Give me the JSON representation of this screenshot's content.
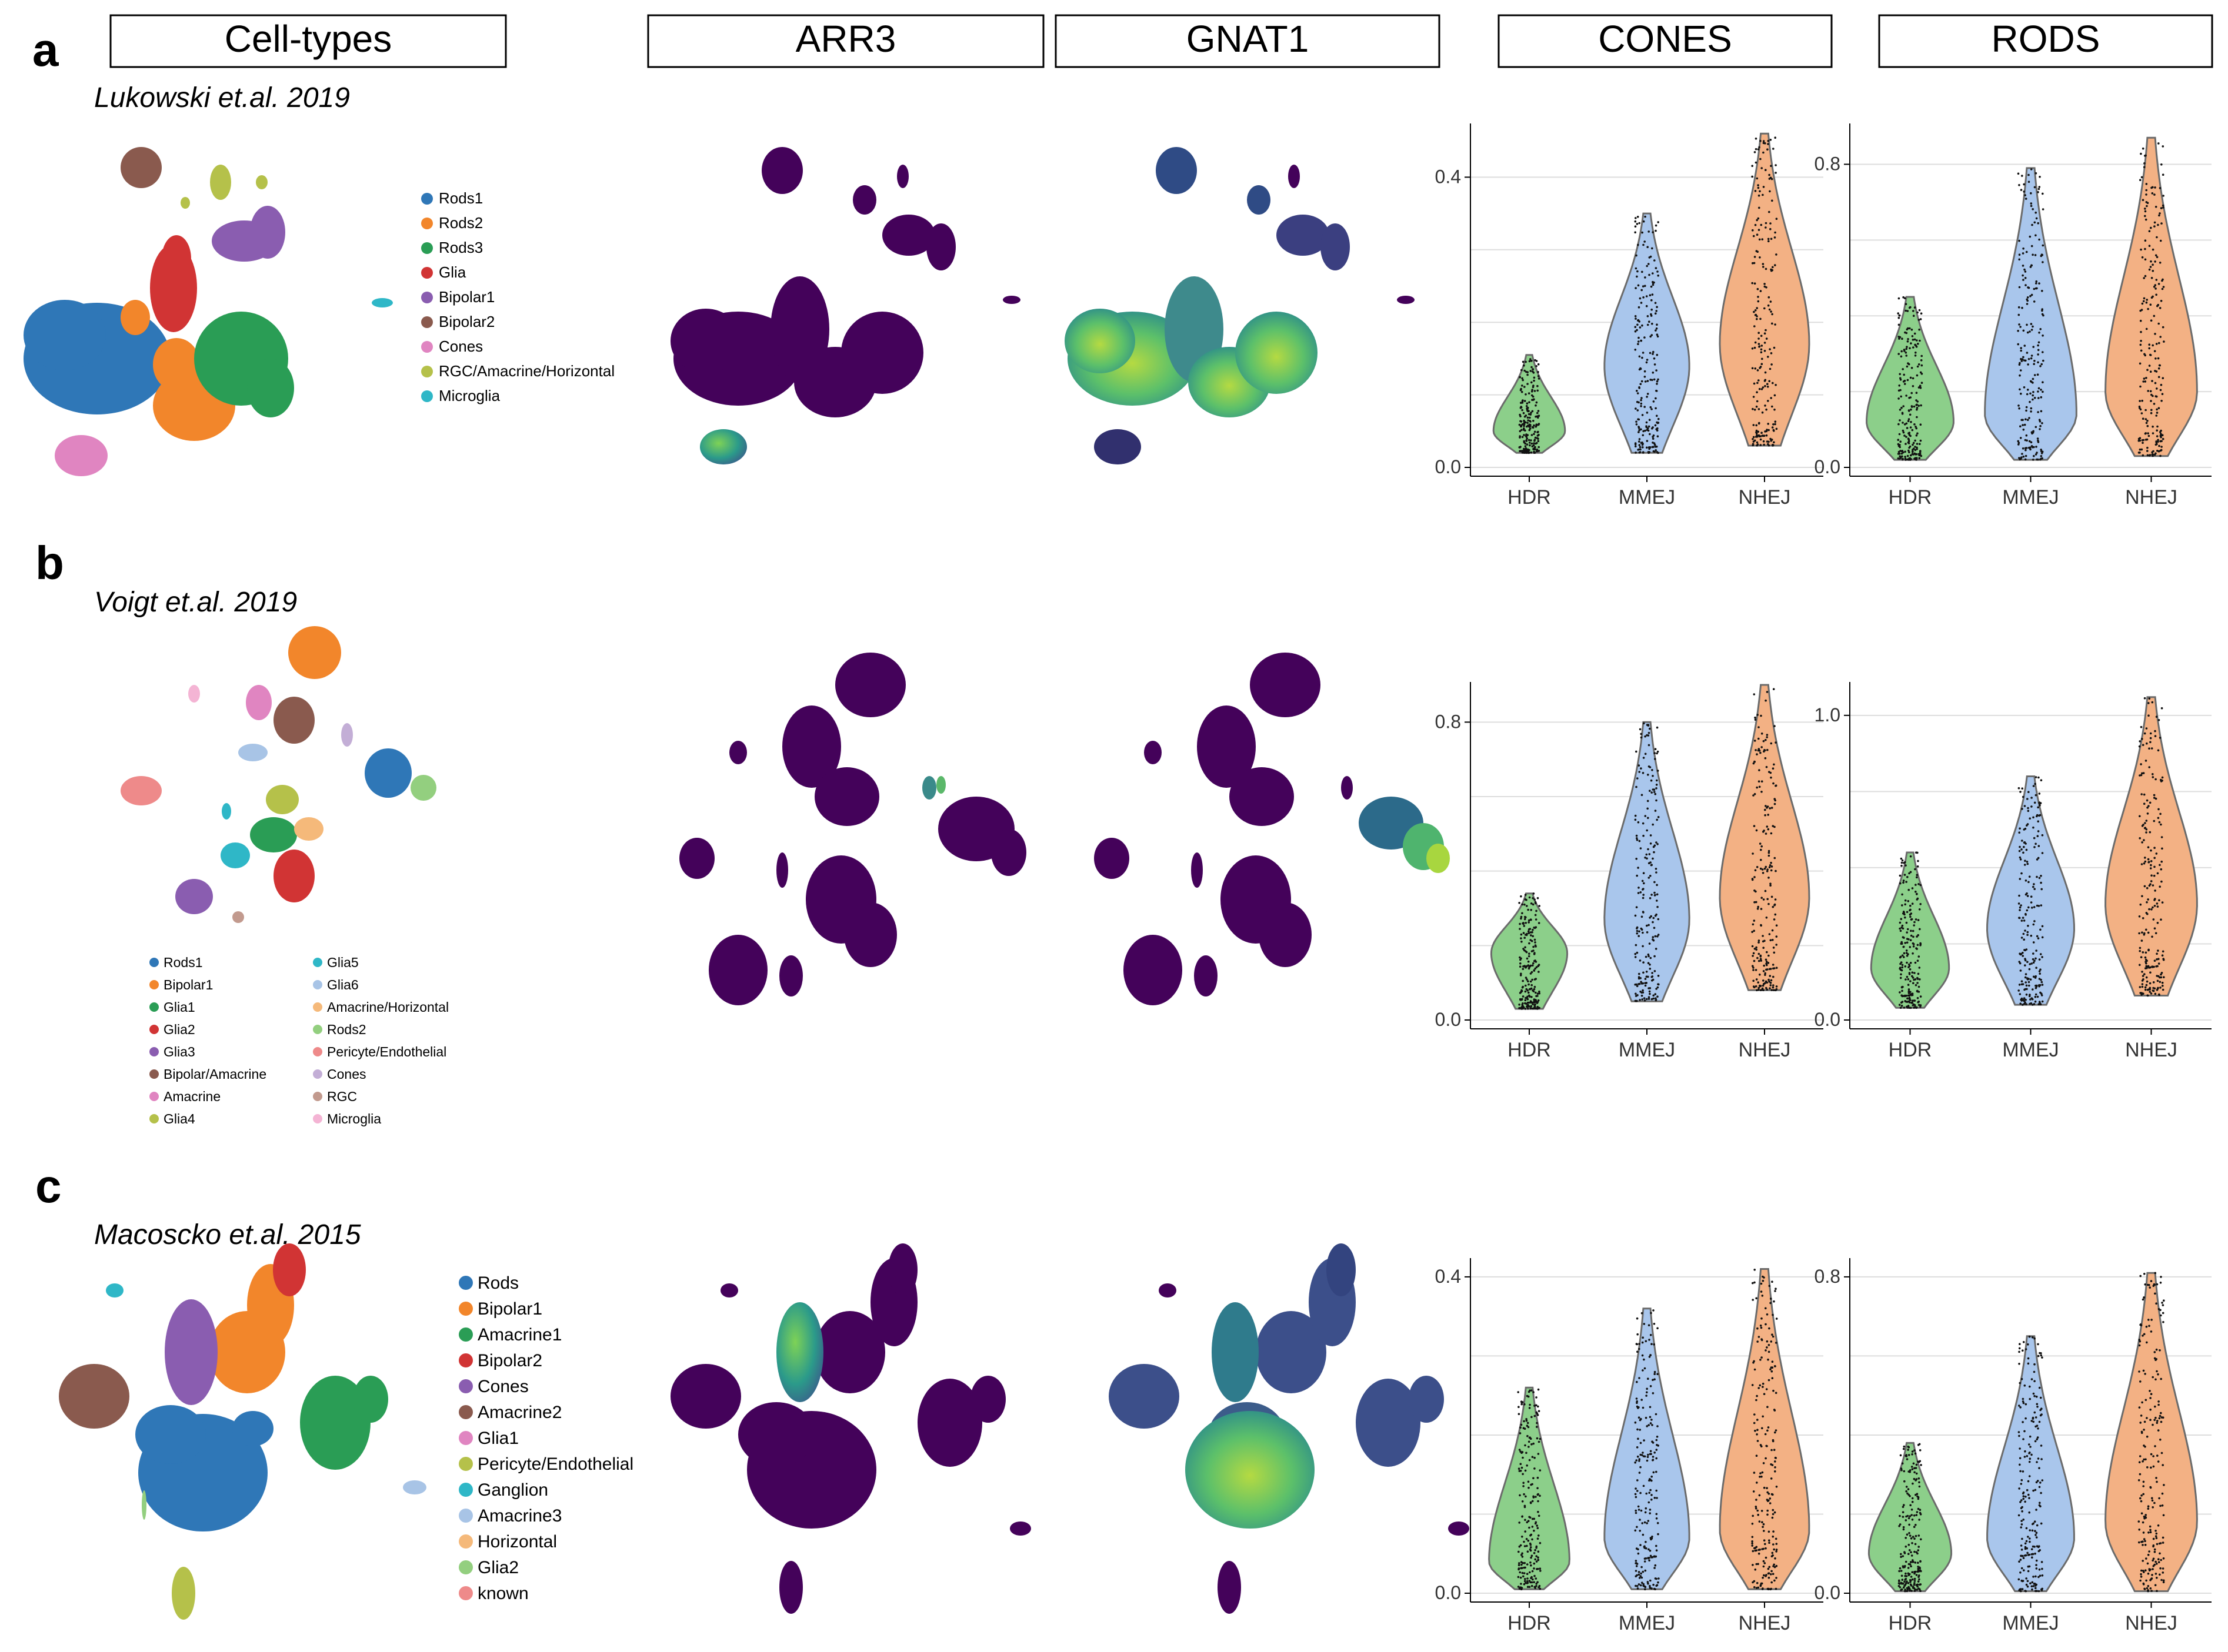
{
  "panel_labels": [
    "a",
    "b",
    "c"
  ],
  "column_headers": [
    "Cell-types",
    "ARR3",
    "GNAT1",
    "CONES",
    "RODS"
  ],
  "rows": [
    {
      "study": "Lukowski et.al. 2019",
      "legend": [
        {
          "label": "Rods1",
          "color": "#2f77b7"
        },
        {
          "label": "Rods2",
          "color": "#f2862b"
        },
        {
          "label": "Rods3",
          "color": "#2a9d55"
        },
        {
          "label": "Glia",
          "color": "#d13434"
        },
        {
          "label": "Bipolar1",
          "color": "#8a5db0"
        },
        {
          "label": "Bipolar2",
          "color": "#8a5a4e"
        },
        {
          "label": "Cones",
          "color": "#e085c1"
        },
        {
          "label": "RGC/Amacrine/Horizontal",
          "color": "#b5c14a"
        },
        {
          "label": "Microglia",
          "color": "#2fb7c7"
        }
      ]
    },
    {
      "study": "Voigt et.al. 2019",
      "legend": [
        {
          "label": "Rods1",
          "color": "#2f77b7"
        },
        {
          "label": "Bipolar1",
          "color": "#f2862b"
        },
        {
          "label": "Glia1",
          "color": "#2a9d55"
        },
        {
          "label": "Glia2",
          "color": "#d13434"
        },
        {
          "label": "Glia3",
          "color": "#8a5db0"
        },
        {
          "label": "Bipolar/Amacrine",
          "color": "#8a5a4e"
        },
        {
          "label": "Amacrine",
          "color": "#e085c1"
        },
        {
          "label": "Glia4",
          "color": "#b5c14a"
        },
        {
          "label": "Glia5",
          "color": "#2fb7c7"
        },
        {
          "label": "Glia6",
          "color": "#a8c4e6"
        },
        {
          "label": "Amacrine/Horizontal",
          "color": "#f5b97a"
        },
        {
          "label": "Rods2",
          "color": "#93cf7f"
        },
        {
          "label": "Pericyte/Endothelial",
          "color": "#ee8a8a"
        },
        {
          "label": "Cones",
          "color": "#c3aed6"
        },
        {
          "label": "RGC",
          "color": "#c29a8e"
        },
        {
          "label": "Microglia",
          "color": "#f4b4d4"
        }
      ]
    },
    {
      "study": "Macoscko et.al. 2015",
      "legend": [
        {
          "label": "Rods",
          "color": "#2f77b7"
        },
        {
          "label": "Bipolar1",
          "color": "#f2862b"
        },
        {
          "label": "Amacrine1",
          "color": "#2a9d55"
        },
        {
          "label": "Bipolar2",
          "color": "#d13434"
        },
        {
          "label": "Cones",
          "color": "#8a5db0"
        },
        {
          "label": "Amacrine2",
          "color": "#8a5a4e"
        },
        {
          "label": "Glia1",
          "color": "#e085c1"
        },
        {
          "label": "Pericyte/Endothelial",
          "color": "#b5c14a"
        },
        {
          "label": "Ganglion",
          "color": "#2fb7c7"
        },
        {
          "label": "Amacrine3",
          "color": "#a8c4e6"
        },
        {
          "label": "Horizontal",
          "color": "#f5b97a"
        },
        {
          "label": "Glia2",
          "color": "#93cf7f"
        },
        {
          "label": "known",
          "color": "#ee8a8a"
        }
      ]
    }
  ],
  "colors": {
    "HDR": "#8ccf8a",
    "MMEJ": "#a9c6ec",
    "NHEJ": "#f3b184",
    "violin_outline": "#6b6b6b",
    "jitter": "#111111",
    "grid": "#dddddd",
    "viridis_low": "#44025a",
    "viridis_high": "#a8d63f"
  },
  "chart_data": [
    {
      "type": "violin",
      "row": 0,
      "column": "CONES",
      "categories": [
        "HDR",
        "MMEJ",
        "NHEJ"
      ],
      "ylim": [
        0,
        0.47
      ],
      "yticks": [
        0.0,
        0.4
      ],
      "ytick_labels": [
        "0.0",
        "0.4"
      ],
      "gridlines": [
        0,
        0.1,
        0.2,
        0.3,
        0.4
      ],
      "violins": [
        {
          "min": 0.02,
          "max": 0.155,
          "mode": 0.05,
          "width": 0.8
        },
        {
          "min": 0.02,
          "max": 0.35,
          "mode": 0.14,
          "width": 0.95
        },
        {
          "min": 0.03,
          "max": 0.46,
          "mode": 0.17,
          "width": 1.0
        }
      ]
    },
    {
      "type": "violin",
      "row": 0,
      "column": "RODS",
      "categories": [
        "HDR",
        "MMEJ",
        "NHEJ"
      ],
      "ylim": [
        0,
        0.9
      ],
      "yticks": [
        0.0,
        0.8
      ],
      "ytick_labels": [
        "0.0",
        "0.8"
      ],
      "gridlines": [
        0,
        0.2,
        0.4,
        0.6,
        0.8
      ],
      "violins": [
        {
          "min": 0.02,
          "max": 0.45,
          "mode": 0.12,
          "width": 0.95
        },
        {
          "min": 0.02,
          "max": 0.79,
          "mode": 0.14,
          "width": 1.0
        },
        {
          "min": 0.03,
          "max": 0.87,
          "mode": 0.2,
          "width": 1.0
        }
      ]
    },
    {
      "type": "violin",
      "row": 1,
      "column": "CONES",
      "categories": [
        "HDR",
        "MMEJ",
        "NHEJ"
      ],
      "ylim": [
        0,
        0.9
      ],
      "yticks": [
        0.0,
        0.8
      ],
      "ytick_labels": [
        "0.0",
        "0.8"
      ],
      "gridlines": [
        0,
        0.2,
        0.4,
        0.6,
        0.8
      ],
      "violins": [
        {
          "min": 0.03,
          "max": 0.34,
          "mode": 0.18,
          "width": 0.85
        },
        {
          "min": 0.05,
          "max": 0.8,
          "mode": 0.27,
          "width": 0.95
        },
        {
          "min": 0.08,
          "max": 0.9,
          "mode": 0.33,
          "width": 1.0
        }
      ]
    },
    {
      "type": "violin",
      "row": 1,
      "column": "RODS",
      "categories": [
        "HDR",
        "MMEJ",
        "NHEJ"
      ],
      "ylim": [
        0,
        1.1
      ],
      "yticks": [
        0.0,
        1.0
      ],
      "ytick_labels": [
        "0.0",
        "1.0"
      ],
      "gridlines": [
        0,
        0.25,
        0.5,
        0.75,
        1.0
      ],
      "violins": [
        {
          "min": 0.04,
          "max": 0.55,
          "mode": 0.17,
          "width": 0.85
        },
        {
          "min": 0.05,
          "max": 0.8,
          "mode": 0.3,
          "width": 0.95
        },
        {
          "min": 0.08,
          "max": 1.06,
          "mode": 0.38,
          "width": 1.0
        }
      ]
    },
    {
      "type": "violin",
      "row": 2,
      "column": "CONES",
      "categories": [
        "HDR",
        "MMEJ",
        "NHEJ"
      ],
      "ylim": [
        0,
        0.42
      ],
      "yticks": [
        0.0,
        0.4
      ],
      "ytick_labels": [
        "0.0",
        "0.4"
      ],
      "gridlines": [
        0,
        0.1,
        0.2,
        0.3,
        0.4
      ],
      "violins": [
        {
          "min": 0.005,
          "max": 0.26,
          "mode": 0.04,
          "width": 0.9
        },
        {
          "min": 0.005,
          "max": 0.36,
          "mode": 0.07,
          "width": 0.95
        },
        {
          "min": 0.005,
          "max": 0.41,
          "mode": 0.08,
          "width": 1.0
        }
      ]
    },
    {
      "type": "violin",
      "row": 2,
      "column": "RODS",
      "categories": [
        "HDR",
        "MMEJ",
        "NHEJ"
      ],
      "ylim": [
        0,
        0.84
      ],
      "yticks": [
        0.0,
        0.8
      ],
      "ytick_labels": [
        "0.0",
        "0.8"
      ],
      "gridlines": [
        0,
        0.2,
        0.4,
        0.6,
        0.8
      ],
      "violins": [
        {
          "min": 0.005,
          "max": 0.38,
          "mode": 0.1,
          "width": 0.9
        },
        {
          "min": 0.005,
          "max": 0.65,
          "mode": 0.14,
          "width": 0.95
        },
        {
          "min": 0.005,
          "max": 0.81,
          "mode": 0.18,
          "width": 1.0
        }
      ]
    }
  ]
}
